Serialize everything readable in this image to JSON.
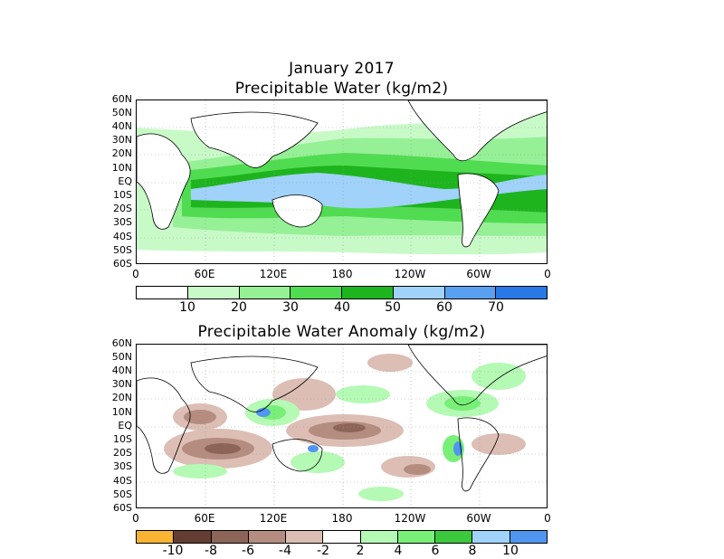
{
  "map1": {
    "title_line1": "January 2017",
    "title_line2": "Precipitable Water (kg/m2)",
    "lat_labels": [
      "60N",
      "50N",
      "40N",
      "30N",
      "20N",
      "10N",
      "EQ",
      "10S",
      "20S",
      "30S",
      "40S",
      "50S",
      "60S"
    ],
    "lon_labels": [
      "0",
      "60E",
      "120E",
      "180",
      "120W",
      "60W",
      "0"
    ],
    "colorbar": {
      "colors": [
        "#ffffff",
        "#c8fac8",
        "#96f096",
        "#50dc50",
        "#1eb41e",
        "#a0d2fa",
        "#5aa0f0",
        "#2878e6"
      ],
      "labels": [
        "10",
        "20",
        "30",
        "40",
        "50",
        "60",
        "70"
      ]
    }
  },
  "map2": {
    "title": "Precipitable Water Anomaly (kg/m2)",
    "lat_labels": [
      "60N",
      "50N",
      "40N",
      "30N",
      "20N",
      "10N",
      "EQ",
      "10S",
      "20S",
      "30S",
      "40S",
      "50S",
      "60S"
    ],
    "lon_labels": [
      "0",
      "60E",
      "120E",
      "180",
      "120W",
      "60W",
      "0"
    ],
    "colorbar": {
      "colors": [
        "#f8b432",
        "#643c32",
        "#8c6458",
        "#b48c80",
        "#dcbeb4",
        "#ffffff",
        "#b4fab4",
        "#78f078",
        "#3cc83c",
        "#a0d2fa",
        "#5096f0"
      ],
      "labels": [
        "-10",
        "-8",
        "-6",
        "-4",
        "-2",
        "2",
        "4",
        "6",
        "8",
        "10"
      ]
    }
  }
}
